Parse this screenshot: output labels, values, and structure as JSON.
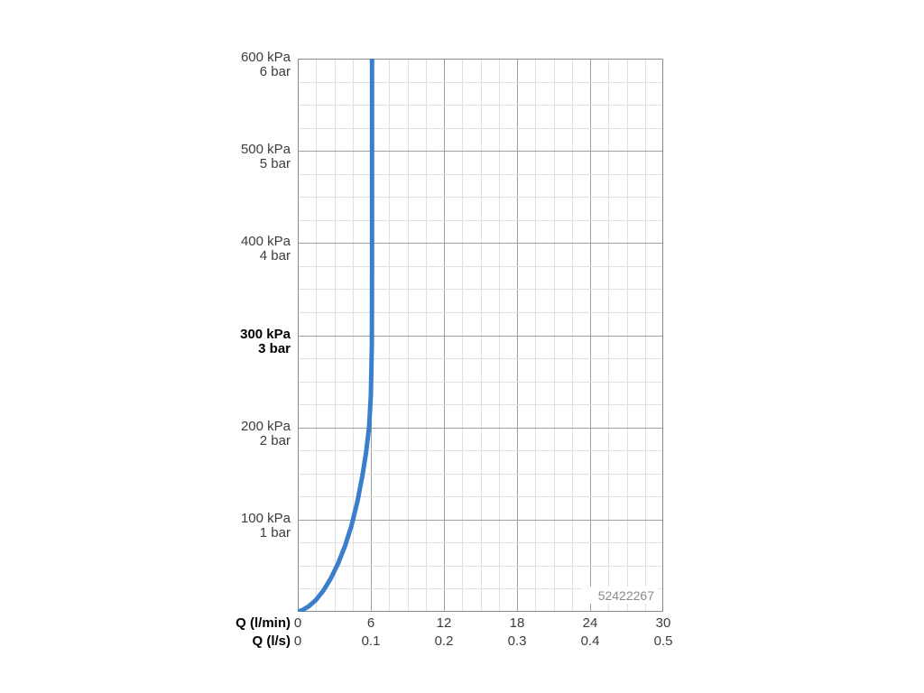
{
  "chart_data": {
    "type": "line",
    "title": "",
    "code_label": "52422267",
    "grid": {
      "on": true,
      "minor_color": "#e0e0e0",
      "major_color": "#9f9f9f",
      "border_color": "#8a8a8a"
    },
    "x_axis_primary": {
      "label": "Q (l/min)",
      "min": 0,
      "max": 30,
      "major_ticks": [
        0,
        6,
        12,
        18,
        24,
        30
      ],
      "minor_step": 1.5
    },
    "x_axis_secondary": {
      "label": "Q (l/s)",
      "tick_labels": [
        "0",
        "0.1",
        "0.2",
        "0.3",
        "0.4",
        "0.5"
      ]
    },
    "y_axis": {
      "min": 0,
      "max": 600,
      "major_step": 100,
      "minor_step": 25,
      "ticks": [
        {
          "value": 600,
          "kpa": "600 kPa",
          "bar": "6 bar",
          "bold": false
        },
        {
          "value": 500,
          "kpa": "500 kPa",
          "bar": "5 bar",
          "bold": false
        },
        {
          "value": 400,
          "kpa": "400 kPa",
          "bar": "4 bar",
          "bold": false
        },
        {
          "value": 300,
          "kpa": "300 kPa",
          "bar": "3 bar",
          "bold": true
        },
        {
          "value": 200,
          "kpa": "200 kPa",
          "bar": "2 bar",
          "bold": false
        },
        {
          "value": 100,
          "kpa": "100 kPa",
          "bar": "1 bar",
          "bold": false
        }
      ]
    },
    "series": [
      {
        "name": "flow-curve",
        "color": "#3b7ecb",
        "width": 5,
        "points": [
          [
            0,
            0
          ],
          [
            0.4,
            2
          ],
          [
            0.9,
            6
          ],
          [
            1.5,
            13
          ],
          [
            2.1,
            23
          ],
          [
            2.7,
            36
          ],
          [
            3.3,
            52
          ],
          [
            3.9,
            72
          ],
          [
            4.4,
            93
          ],
          [
            4.9,
            120
          ],
          [
            5.3,
            147
          ],
          [
            5.6,
            172
          ],
          [
            5.85,
            200
          ],
          [
            6.0,
            235
          ],
          [
            6.08,
            290
          ],
          [
            6.1,
            380
          ],
          [
            6.1,
            600
          ]
        ]
      }
    ]
  }
}
